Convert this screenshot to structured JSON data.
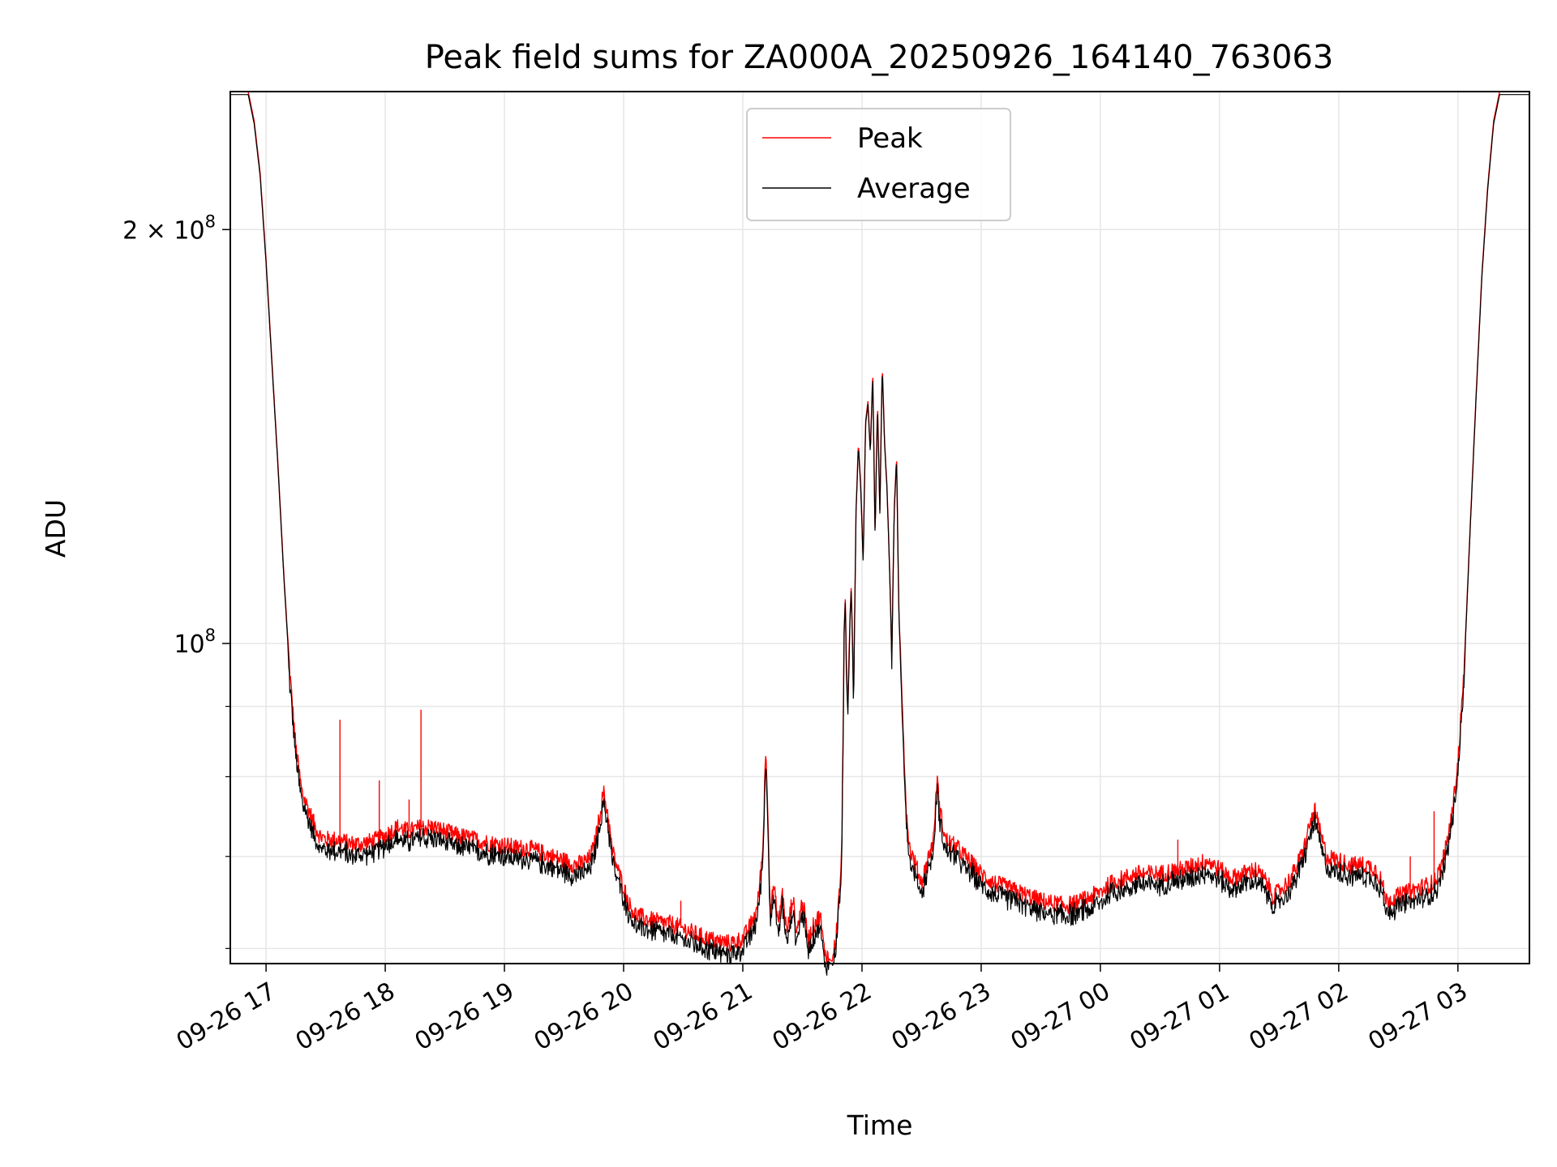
{
  "chart_data": {
    "type": "line",
    "title": "Peak field sums for ZA000A_20250926_164140_763063",
    "xlabel": "Time",
    "ylabel": "ADU",
    "yscale": "log",
    "ylim": [
      58500000,
      252000000
    ],
    "xlim_hours": [
      16.7,
      27.6
    ],
    "grid": true,
    "legend_position": "upper center",
    "x_ticks": [
      {
        "label": "09-26 17",
        "hour": 17
      },
      {
        "label": "09-26 18",
        "hour": 18
      },
      {
        "label": "09-26 19",
        "hour": 19
      },
      {
        "label": "09-26 20",
        "hour": 20
      },
      {
        "label": "09-26 21",
        "hour": 21
      },
      {
        "label": "09-26 22",
        "hour": 22
      },
      {
        "label": "09-26 23",
        "hour": 23
      },
      {
        "label": "09-27 00",
        "hour": 24
      },
      {
        "label": "09-27 01",
        "hour": 25
      },
      {
        "label": "09-27 02",
        "hour": 26
      },
      {
        "label": "09-27 03",
        "hour": 27
      }
    ],
    "y_major_ticks": [
      {
        "value": 100000000,
        "base": "10",
        "exp": "8",
        "prefix": ""
      },
      {
        "value": 200000000,
        "base": "10",
        "exp": "8",
        "prefix": "2 × "
      }
    ],
    "y_minor_ticks": [
      60000000,
      70000000,
      80000000,
      90000000
    ],
    "series": [
      {
        "name": "Peak",
        "color": "#ff0000",
        "points": [
          [
            16.7,
            252000000
          ],
          [
            16.85,
            252000000
          ],
          [
            16.9,
            240000000
          ],
          [
            16.95,
            220000000
          ],
          [
            17.0,
            190000000
          ],
          [
            17.05,
            160000000
          ],
          [
            17.1,
            135000000
          ],
          [
            17.15,
            112000000
          ],
          [
            17.2,
            95000000
          ],
          [
            17.25,
            84000000
          ],
          [
            17.3,
            78000000
          ],
          [
            17.35,
            76000000
          ],
          [
            17.4,
            74000000
          ],
          [
            17.45,
            72500000
          ],
          [
            17.5,
            72000000
          ],
          [
            17.6,
            72000000
          ],
          [
            17.7,
            71500000
          ],
          [
            17.8,
            71500000
          ],
          [
            17.9,
            71800000
          ],
          [
            18.0,
            72500000
          ],
          [
            18.1,
            73500000
          ],
          [
            18.2,
            73000000
          ],
          [
            18.3,
            73500000
          ],
          [
            18.4,
            73500000
          ],
          [
            18.5,
            73000000
          ],
          [
            18.6,
            72500000
          ],
          [
            18.7,
            72200000
          ],
          [
            18.8,
            71800000
          ],
          [
            18.9,
            71500000
          ],
          [
            19.0,
            71300000
          ],
          [
            19.1,
            71000000
          ],
          [
            19.2,
            71000000
          ],
          [
            19.3,
            70500000
          ],
          [
            19.4,
            70000000
          ],
          [
            19.5,
            69500000
          ],
          [
            19.6,
            69000000
          ],
          [
            19.7,
            69500000
          ],
          [
            19.75,
            71000000
          ],
          [
            19.8,
            75000000
          ],
          [
            19.83,
            78000000
          ],
          [
            19.87,
            75000000
          ],
          [
            19.9,
            71000000
          ],
          [
            19.95,
            68500000
          ],
          [
            20.0,
            66500000
          ],
          [
            20.05,
            64500000
          ],
          [
            20.1,
            63500000
          ],
          [
            20.2,
            63000000
          ],
          [
            20.3,
            62700000
          ],
          [
            20.4,
            62500000
          ],
          [
            20.5,
            62000000
          ],
          [
            20.6,
            61500000
          ],
          [
            20.7,
            61000000
          ],
          [
            20.8,
            60700000
          ],
          [
            20.9,
            60500000
          ],
          [
            21.0,
            61000000
          ],
          [
            21.05,
            62000000
          ],
          [
            21.12,
            64000000
          ],
          [
            21.17,
            71000000
          ],
          [
            21.19,
            84000000
          ],
          [
            21.21,
            76000000
          ],
          [
            21.23,
            64000000
          ],
          [
            21.26,
            66500000
          ],
          [
            21.3,
            62500000
          ],
          [
            21.33,
            66000000
          ],
          [
            21.37,
            61500000
          ],
          [
            21.42,
            65500000
          ],
          [
            21.45,
            61500000
          ],
          [
            21.5,
            65000000
          ],
          [
            21.55,
            61000000
          ],
          [
            21.6,
            62500000
          ],
          [
            21.65,
            63500000
          ],
          [
            21.68,
            60000000
          ],
          [
            21.72,
            59000000
          ],
          [
            21.75,
            58700000
          ],
          [
            21.78,
            61000000
          ],
          [
            21.8,
            64000000
          ],
          [
            21.83,
            70000000
          ],
          [
            21.85,
            102000000
          ],
          [
            21.86,
            108000000
          ],
          [
            21.88,
            88000000
          ],
          [
            21.9,
            105000000
          ],
          [
            21.91,
            110000000
          ],
          [
            21.93,
            92000000
          ],
          [
            21.95,
            125000000
          ],
          [
            21.97,
            140000000
          ],
          [
            21.99,
            130000000
          ],
          [
            22.01,
            115000000
          ],
          [
            22.03,
            145000000
          ],
          [
            22.05,
            150000000
          ],
          [
            22.07,
            138000000
          ],
          [
            22.09,
            158000000
          ],
          [
            22.11,
            120000000
          ],
          [
            22.13,
            150000000
          ],
          [
            22.15,
            125000000
          ],
          [
            22.17,
            160000000
          ],
          [
            22.19,
            140000000
          ],
          [
            22.21,
            130000000
          ],
          [
            22.23,
            115000000
          ],
          [
            22.25,
            98000000
          ],
          [
            22.27,
            125000000
          ],
          [
            22.29,
            137000000
          ],
          [
            22.31,
            105000000
          ],
          [
            22.33,
            95000000
          ],
          [
            22.35,
            85000000
          ],
          [
            22.37,
            76000000
          ],
          [
            22.4,
            71000000
          ],
          [
            22.45,
            69000000
          ],
          [
            22.5,
            67000000
          ],
          [
            22.55,
            69500000
          ],
          [
            22.6,
            72000000
          ],
          [
            22.63,
            80000000
          ],
          [
            22.65,
            76000000
          ],
          [
            22.7,
            72000000
          ],
          [
            22.8,
            71000000
          ],
          [
            22.9,
            69500000
          ],
          [
            23.0,
            68000000
          ],
          [
            23.1,
            67000000
          ],
          [
            23.2,
            66500000
          ],
          [
            23.3,
            66000000
          ],
          [
            23.4,
            65500000
          ],
          [
            23.5,
            65000000
          ],
          [
            23.6,
            64700000
          ],
          [
            23.7,
            64500000
          ],
          [
            23.8,
            64700000
          ],
          [
            23.9,
            65300000
          ],
          [
            24.0,
            66000000
          ],
          [
            24.1,
            67000000
          ],
          [
            24.2,
            67500000
          ],
          [
            24.3,
            68000000
          ],
          [
            24.4,
            68000000
          ],
          [
            24.5,
            68000000
          ],
          [
            24.6,
            68300000
          ],
          [
            24.7,
            68500000
          ],
          [
            24.8,
            69000000
          ],
          [
            24.9,
            69500000
          ],
          [
            25.0,
            68500000
          ],
          [
            25.1,
            67500000
          ],
          [
            25.2,
            68000000
          ],
          [
            25.3,
            68500000
          ],
          [
            25.4,
            67000000
          ],
          [
            25.45,
            65500000
          ],
          [
            25.5,
            66000000
          ],
          [
            25.6,
            67500000
          ],
          [
            25.7,
            70500000
          ],
          [
            25.76,
            74000000
          ],
          [
            25.8,
            75500000
          ],
          [
            25.85,
            72500000
          ],
          [
            25.9,
            70000000
          ],
          [
            26.0,
            69500000
          ],
          [
            26.1,
            69000000
          ],
          [
            26.2,
            69000000
          ],
          [
            26.3,
            68700000
          ],
          [
            26.35,
            67500000
          ],
          [
            26.4,
            65000000
          ],
          [
            26.5,
            65500000
          ],
          [
            26.6,
            66000000
          ],
          [
            26.7,
            66500000
          ],
          [
            26.8,
            67000000
          ],
          [
            26.85,
            68500000
          ],
          [
            26.9,
            71000000
          ],
          [
            26.95,
            75000000
          ],
          [
            27.0,
            82000000
          ],
          [
            27.05,
            95000000
          ],
          [
            27.1,
            120000000
          ],
          [
            27.15,
            150000000
          ],
          [
            27.2,
            185000000
          ],
          [
            27.25,
            215000000
          ],
          [
            27.3,
            240000000
          ],
          [
            27.35,
            252000000
          ],
          [
            27.6,
            252000000
          ]
        ],
        "spikes": [
          [
            17.62,
            88000000
          ],
          [
            17.95,
            79500000
          ],
          [
            18.2,
            77000000
          ],
          [
            18.3,
            89500000
          ],
          [
            20.48,
            65000000
          ],
          [
            21.19,
            84000000
          ],
          [
            24.65,
            72000000
          ],
          [
            26.6,
            70000000
          ],
          [
            26.8,
            75500000
          ]
        ]
      },
      {
        "name": "Average",
        "color": "#000000",
        "offset_factor": 0.985,
        "points_from": "Peak"
      }
    ]
  }
}
